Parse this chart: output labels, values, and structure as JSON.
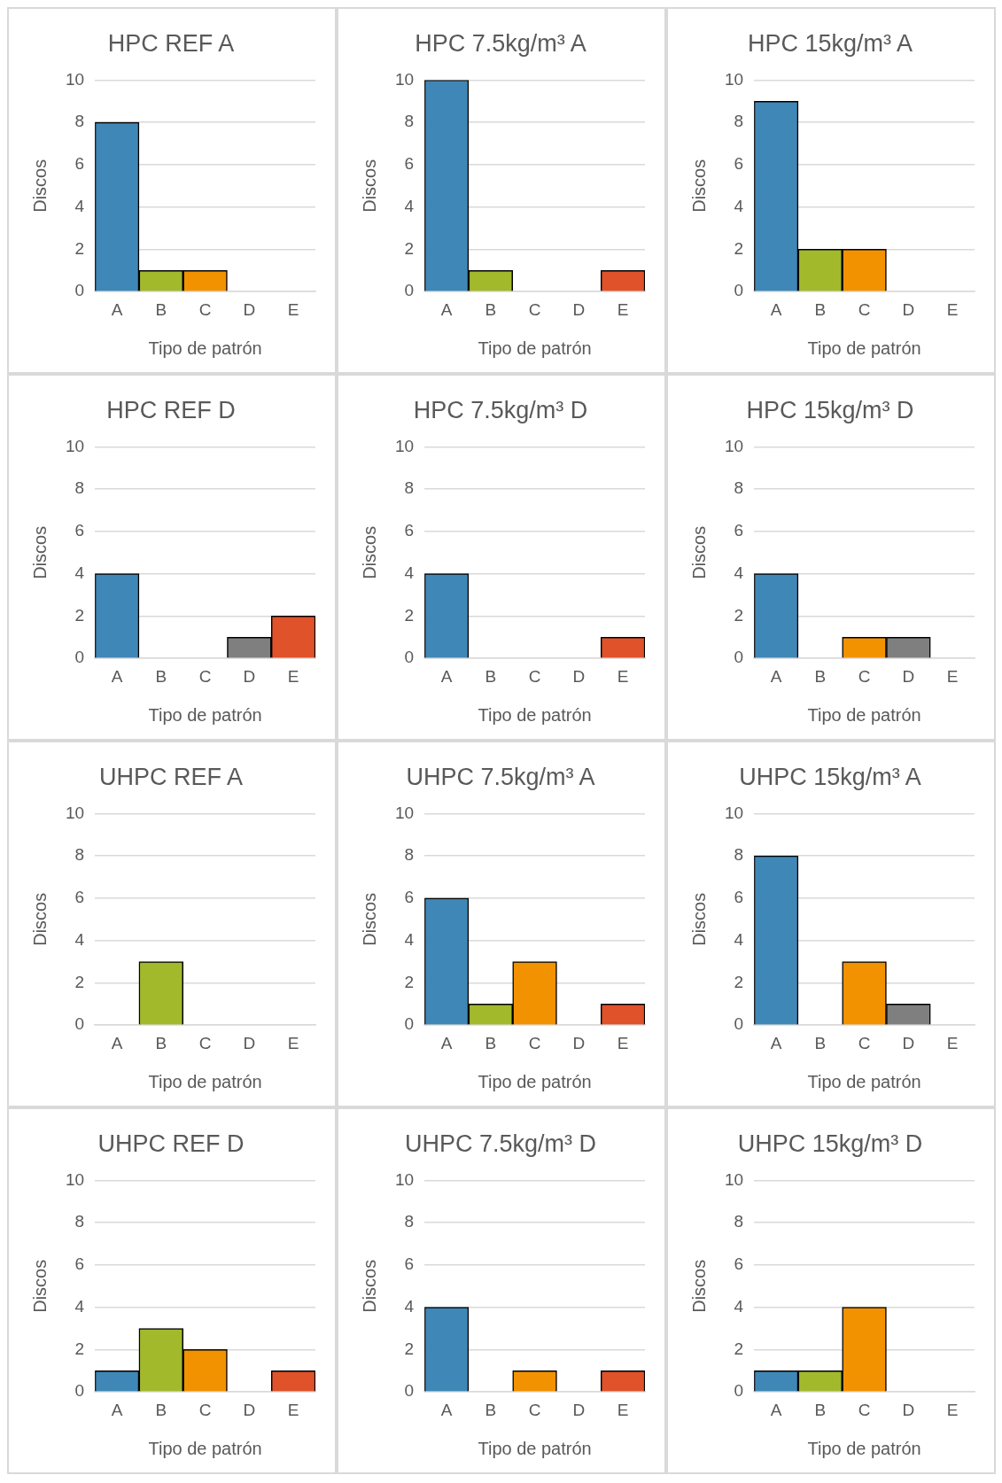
{
  "chart_data": [
    {
      "type": "bar",
      "title": "HPC REF A",
      "xlabel": "Tipo de patrón",
      "ylabel": "Discos",
      "categories": [
        "A",
        "B",
        "C",
        "D",
        "E"
      ],
      "values": [
        8,
        1,
        1,
        0,
        0
      ],
      "colors": [
        "#3f87b6",
        "#a2b92c",
        "#f39200",
        "#7f7f7f",
        "#e0522a"
      ],
      "ylim": [
        0,
        10
      ],
      "yticks": [
        0,
        2,
        4,
        6,
        8,
        10
      ],
      "grid": "y"
    },
    {
      "type": "bar",
      "title": "HPC 7.5kg/m³ A",
      "xlabel": "Tipo de patrón",
      "ylabel": "Discos",
      "categories": [
        "A",
        "B",
        "C",
        "D",
        "E"
      ],
      "values": [
        10,
        1,
        0,
        0,
        1
      ],
      "colors": [
        "#3f87b6",
        "#a2b92c",
        "#f39200",
        "#7f7f7f",
        "#e0522a"
      ],
      "ylim": [
        0,
        10
      ],
      "yticks": [
        0,
        2,
        4,
        6,
        8,
        10
      ],
      "grid": "y"
    },
    {
      "type": "bar",
      "title": "HPC 15kg/m³ A",
      "xlabel": "Tipo de patrón",
      "ylabel": "Discos",
      "categories": [
        "A",
        "B",
        "C",
        "D",
        "E"
      ],
      "values": [
        9,
        2,
        2,
        0,
        0
      ],
      "colors": [
        "#3f87b6",
        "#a2b92c",
        "#f39200",
        "#7f7f7f",
        "#e0522a"
      ],
      "ylim": [
        0,
        10
      ],
      "yticks": [
        0,
        2,
        4,
        6,
        8,
        10
      ],
      "grid": "y"
    },
    {
      "type": "bar",
      "title": "HPC REF D",
      "xlabel": "Tipo de patrón",
      "ylabel": "Discos",
      "categories": [
        "A",
        "B",
        "C",
        "D",
        "E"
      ],
      "values": [
        4,
        0,
        0,
        1,
        2
      ],
      "colors": [
        "#3f87b6",
        "#a2b92c",
        "#f39200",
        "#7f7f7f",
        "#e0522a"
      ],
      "ylim": [
        0,
        10
      ],
      "yticks": [
        0,
        2,
        4,
        6,
        8,
        10
      ],
      "grid": "y"
    },
    {
      "type": "bar",
      "title": "HPC 7.5kg/m³ D",
      "xlabel": "Tipo de patrón",
      "ylabel": "Discos",
      "categories": [
        "A",
        "B",
        "C",
        "D",
        "E"
      ],
      "values": [
        4,
        0,
        0,
        0,
        1
      ],
      "colors": [
        "#3f87b6",
        "#a2b92c",
        "#f39200",
        "#7f7f7f",
        "#e0522a"
      ],
      "ylim": [
        0,
        10
      ],
      "yticks": [
        0,
        2,
        4,
        6,
        8,
        10
      ],
      "grid": "y"
    },
    {
      "type": "bar",
      "title": "HPC 15kg/m³ D",
      "xlabel": "Tipo de patrón",
      "ylabel": "Discos",
      "categories": [
        "A",
        "B",
        "C",
        "D",
        "E"
      ],
      "values": [
        4,
        0,
        1,
        1,
        0
      ],
      "colors": [
        "#3f87b6",
        "#a2b92c",
        "#f39200",
        "#7f7f7f",
        "#e0522a"
      ],
      "ylim": [
        0,
        10
      ],
      "yticks": [
        0,
        2,
        4,
        6,
        8,
        10
      ],
      "grid": "y"
    },
    {
      "type": "bar",
      "title": "UHPC REF A",
      "xlabel": "Tipo de patrón",
      "ylabel": "Discos",
      "categories": [
        "A",
        "B",
        "C",
        "D",
        "E"
      ],
      "values": [
        0,
        3,
        0,
        0,
        0
      ],
      "colors": [
        "#3f87b6",
        "#a2b92c",
        "#f39200",
        "#7f7f7f",
        "#e0522a"
      ],
      "ylim": [
        0,
        10
      ],
      "yticks": [
        0,
        2,
        4,
        6,
        8,
        10
      ],
      "grid": "y"
    },
    {
      "type": "bar",
      "title": "UHPC 7.5kg/m³ A",
      "xlabel": "Tipo de patrón",
      "ylabel": "Discos",
      "categories": [
        "A",
        "B",
        "C",
        "D",
        "E"
      ],
      "values": [
        6,
        1,
        3,
        0,
        1
      ],
      "colors": [
        "#3f87b6",
        "#a2b92c",
        "#f39200",
        "#7f7f7f",
        "#e0522a"
      ],
      "ylim": [
        0,
        10
      ],
      "yticks": [
        0,
        2,
        4,
        6,
        8,
        10
      ],
      "grid": "y"
    },
    {
      "type": "bar",
      "title": "UHPC 15kg/m³ A",
      "xlabel": "Tipo de patrón",
      "ylabel": "Discos",
      "categories": [
        "A",
        "B",
        "C",
        "D",
        "E"
      ],
      "values": [
        8,
        0,
        3,
        1,
        0
      ],
      "colors": [
        "#3f87b6",
        "#a2b92c",
        "#f39200",
        "#7f7f7f",
        "#e0522a"
      ],
      "ylim": [
        0,
        10
      ],
      "yticks": [
        0,
        2,
        4,
        6,
        8,
        10
      ],
      "grid": "y"
    },
    {
      "type": "bar",
      "title": "UHPC REF D",
      "xlabel": "Tipo de patrón",
      "ylabel": "Discos",
      "categories": [
        "A",
        "B",
        "C",
        "D",
        "E"
      ],
      "values": [
        1,
        3,
        2,
        0,
        1
      ],
      "colors": [
        "#3f87b6",
        "#a2b92c",
        "#f39200",
        "#7f7f7f",
        "#e0522a"
      ],
      "ylim": [
        0,
        10
      ],
      "yticks": [
        0,
        2,
        4,
        6,
        8,
        10
      ],
      "grid": "y"
    },
    {
      "type": "bar",
      "title": "UHPC 7.5kg/m³ D",
      "xlabel": "Tipo de patrón",
      "ylabel": "Discos",
      "categories": [
        "A",
        "B",
        "C",
        "D",
        "E"
      ],
      "values": [
        4,
        0,
        1,
        0,
        1
      ],
      "colors": [
        "#3f87b6",
        "#a2b92c",
        "#f39200",
        "#7f7f7f",
        "#e0522a"
      ],
      "ylim": [
        0,
        10
      ],
      "yticks": [
        0,
        2,
        4,
        6,
        8,
        10
      ],
      "grid": "y"
    },
    {
      "type": "bar",
      "title": "UHPC 15kg/m³ D",
      "xlabel": "Tipo de patrón",
      "ylabel": "Discos",
      "categories": [
        "A",
        "B",
        "C",
        "D",
        "E"
      ],
      "values": [
        1,
        1,
        4,
        0,
        0
      ],
      "colors": [
        "#3f87b6",
        "#a2b92c",
        "#f39200",
        "#7f7f7f",
        "#e0522a"
      ],
      "ylim": [
        0,
        10
      ],
      "yticks": [
        0,
        2,
        4,
        6,
        8,
        10
      ],
      "grid": "y"
    }
  ]
}
